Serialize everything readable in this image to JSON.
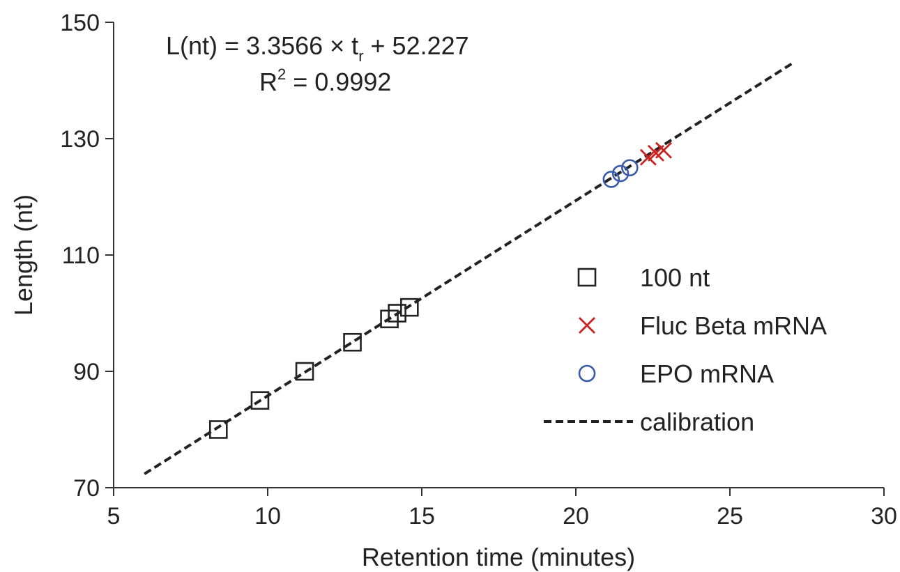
{
  "chart_data": {
    "type": "scatter",
    "xlabel": "Retention time (minutes)",
    "ylabel": "Length (nt)",
    "xlim": [
      5,
      30
    ],
    "ylim": [
      70,
      150
    ],
    "xticks": [
      5,
      10,
      15,
      20,
      25,
      30
    ],
    "yticks": [
      70,
      90,
      110,
      130,
      150
    ],
    "grid": false,
    "legend_position": "right",
    "annotations": {
      "equation_prefix": "L(nt) = 3.3566 × t",
      "equation_subscript": "r",
      "equation_suffix": " + 52.227",
      "r2_prefix": "R",
      "r2_superscript": "2",
      "r2_suffix": " = 0.9992"
    },
    "series": [
      {
        "name": "100 nt",
        "marker": "square",
        "color": "#222222",
        "points": [
          {
            "x": 8.4,
            "y": 80
          },
          {
            "x": 9.75,
            "y": 85
          },
          {
            "x": 11.2,
            "y": 90
          },
          {
            "x": 12.75,
            "y": 95
          },
          {
            "x": 13.95,
            "y": 99
          },
          {
            "x": 14.2,
            "y": 100
          },
          {
            "x": 14.6,
            "y": 101
          }
        ]
      },
      {
        "name": "Fluc Beta mRNA",
        "marker": "x",
        "color": "#cc2222",
        "points": [
          {
            "x": 22.35,
            "y": 126.8
          },
          {
            "x": 22.6,
            "y": 127.5
          },
          {
            "x": 22.85,
            "y": 128.0
          }
        ]
      },
      {
        "name": "EPO mRNA",
        "marker": "circle",
        "color": "#3a5ba8",
        "points": [
          {
            "x": 21.15,
            "y": 123.0
          },
          {
            "x": 21.45,
            "y": 124.0
          },
          {
            "x": 21.75,
            "y": 125.0
          }
        ]
      },
      {
        "name": "calibration",
        "marker": "dashed-line",
        "color": "#222222",
        "slope": 3.3566,
        "intercept": 52.227,
        "x_range": [
          6,
          27.1
        ]
      }
    ]
  }
}
